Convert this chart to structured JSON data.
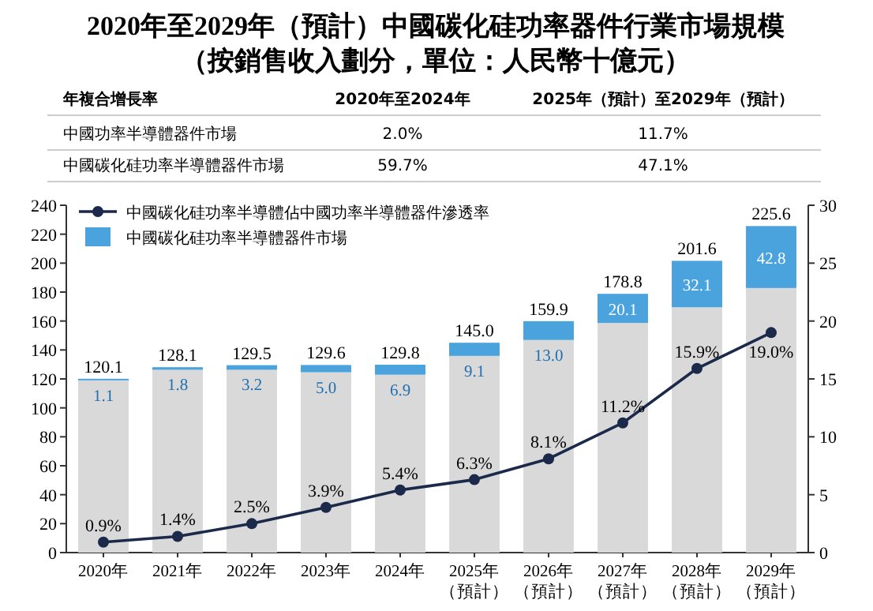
{
  "chart_data": {
    "type": "bar",
    "title": "2020年至2029年（預計）中國碳化硅功率器件行業市場規模",
    "subtitle": "（按銷售收入劃分，單位：人民幣十億元）",
    "annotations": [
      "年複合增長率",
      "2020年至2024年",
      "2025年（預計）至2029年（預計）",
      "中國功率半導體器件市場",
      "2.0%",
      "11.7%",
      "中國碳化硅功率半導體器件市場",
      "59.7%",
      "47.1%"
    ],
    "categories": [
      "2020年",
      "2021年",
      "2022年",
      "2023年",
      "2024年",
      "2025年（預計）",
      "2026年（預計）",
      "2027年（預計）",
      "2028年（預計）",
      "2029年（預計）"
    ],
    "stacked": true,
    "series": [
      {
        "color": "#d9d9d9",
        "values": [
          119.0,
          126.3,
          126.3,
          124.6,
          122.9,
          135.9,
          146.9,
          158.7,
          169.5,
          182.8
        ]
      },
      {
        "name": "中國碳化硅功率半導體器件市場",
        "color": "#4ba3de",
        "values": [
          1.1,
          1.8,
          3.2,
          5.0,
          6.9,
          9.1,
          13.0,
          20.1,
          32.1,
          42.8
        ],
        "value_labels": [
          "1.1",
          "1.8",
          "3.2",
          "5.0",
          "6.9",
          "9.1",
          "13.0",
          "20.1",
          "32.1",
          "42.8"
        ]
      },
      {
        "type": "line",
        "axis": "y2",
        "name": "中國碳化硅功率半導體佔中國功率半導體器件滲透率",
        "color": "#1b2a4a",
        "marker": "circle",
        "values": [
          0.9,
          1.4,
          2.5,
          3.9,
          5.4,
          6.3,
          8.1,
          11.2,
          15.9,
          19.0
        ],
        "value_labels": [
          "0.9%",
          "1.4%",
          "2.5%",
          "3.9%",
          "5.4%",
          "6.3%",
          "8.1%",
          "11.2%",
          "15.9%",
          "19.0%"
        ]
      }
    ],
    "totals": [
      "120.1",
      "128.1",
      "129.5",
      "129.6",
      "129.8",
      "145.0",
      "159.9",
      "178.8",
      "201.6",
      "225.6"
    ],
    "ylim": [
      0,
      240
    ],
    "yticks": [
      0,
      20,
      40,
      60,
      80,
      100,
      120,
      140,
      160,
      180,
      200,
      220,
      240
    ],
    "y2lim": [
      0,
      30
    ],
    "y2ticks": [
      0,
      5,
      10,
      15,
      20,
      25,
      30
    ],
    "legend": "top left",
    "grid": false
  }
}
